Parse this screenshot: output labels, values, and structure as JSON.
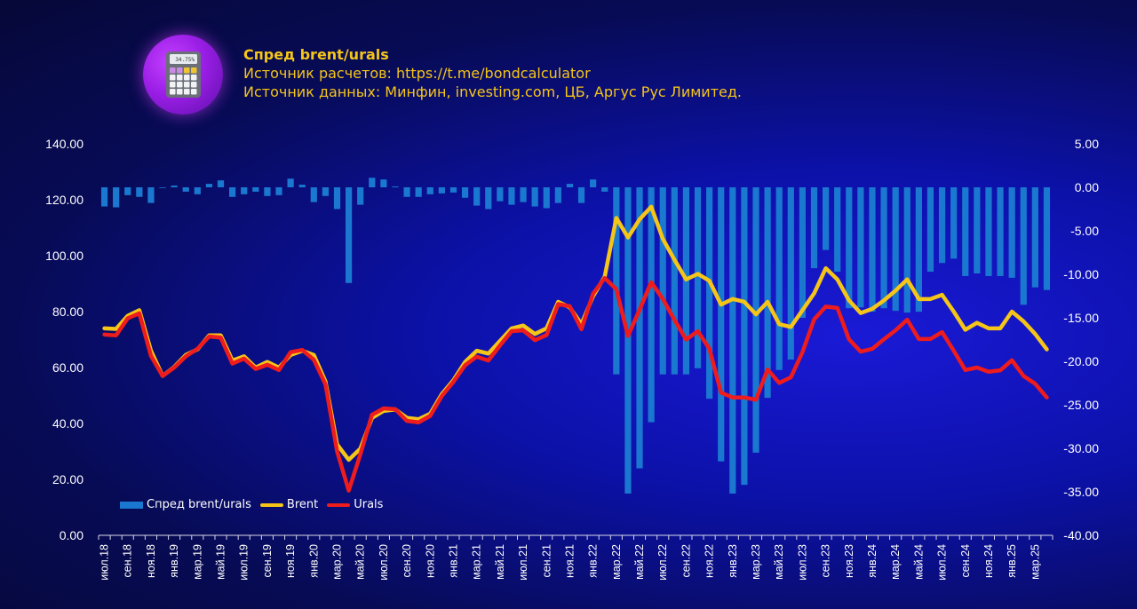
{
  "header": {
    "title": "Спред brent/urals",
    "source_calc": "Источник расчетов: https://t.me/bondcalculator",
    "source_data": "Источник данных: Минфин, investing.com, ЦБ, Аргус Рус Лимитед.",
    "logo_readout": "34.75%"
  },
  "chart_data": {
    "type": "bar+line",
    "title": "Спред brent/urals",
    "x_tick_labels": [
      "июл.18",
      "сен.18",
      "ноя.18",
      "янв.19",
      "мар.19",
      "май.19",
      "июл.19",
      "сен.19",
      "ноя.19",
      "янв.20",
      "мар.20",
      "май.20",
      "июл.20",
      "сен.20",
      "ноя.20",
      "янв.21",
      "мар.21",
      "май.21",
      "июл.21",
      "сен.21",
      "ноя.21",
      "янв.22",
      "мар.22",
      "май.22",
      "июл.22",
      "сен.22",
      "ноя.22",
      "янв.23",
      "мар.23",
      "май.23",
      "июл.23",
      "сен.23",
      "ноя.23",
      "янв.24",
      "мар.24",
      "май.24",
      "июл.24",
      "сен.24",
      "ноя.24",
      "янв.25",
      "мар.25"
    ],
    "left_axis": {
      "min": 0,
      "max": 140,
      "ticks": [
        "0.00",
        "20.00",
        "40.00",
        "60.00",
        "80.00",
        "100.00",
        "120.00",
        "140.00"
      ]
    },
    "right_axis": {
      "min": -40,
      "max": 5,
      "ticks": [
        "-40.00",
        "-35.00",
        "-30.00",
        "-25.00",
        "-20.00",
        "-15.00",
        "-10.00",
        "-5.00",
        "0.00",
        "5.00"
      ]
    },
    "series": [
      {
        "name": "Спред brent/urals",
        "type": "bar",
        "axis": "right",
        "color": "#1a78d0",
        "values": [
          -2.2,
          -2.3,
          -0.9,
          -1.1,
          -1.8,
          0.0,
          0.2,
          -0.5,
          -0.8,
          0.4,
          0.8,
          -1.1,
          -0.8,
          -0.5,
          -1.0,
          -0.9,
          1.0,
          0.3,
          -1.7,
          -1.0,
          -2.5,
          -11.0,
          -2.0,
          1.1,
          0.9,
          0.1,
          -1.1,
          -1.1,
          -0.8,
          -0.7,
          -0.6,
          -1.2,
          -2.1,
          -2.5,
          -1.6,
          -2.0,
          -1.7,
          -2.2,
          -2.4,
          -1.8,
          0.4,
          -1.8,
          0.9,
          -0.5,
          -21.5,
          -35.2,
          -32.3,
          -27.0,
          -21.5,
          -21.5,
          -21.5,
          -20.8,
          -24.3,
          -31.5,
          -35.2,
          -34.2,
          -30.5,
          -24.2,
          -21.0,
          -19.8,
          -15.0,
          -9.3,
          -7.2,
          -9.7,
          -13.9,
          -13.8,
          -14.3,
          -13.9,
          -14.2,
          -14.4,
          -14.3,
          -9.7,
          -8.7,
          -8.2,
          -10.2,
          -9.9,
          -10.2,
          -10.2,
          -10.4,
          -13.5,
          -11.5,
          -11.8
        ]
      },
      {
        "name": "Brent",
        "type": "line",
        "axis": "left",
        "color": "#f5c518",
        "values": [
          74.0,
          73.8,
          78.5,
          80.5,
          66.0,
          57.0,
          60.2,
          64.5,
          66.5,
          71.5,
          71.5,
          62.5,
          64.0,
          60.0,
          62.0,
          60.0,
          64.5,
          66.0,
          64.5,
          55.0,
          32.5,
          27.0,
          31.0,
          42.0,
          44.5,
          45.0,
          42.0,
          41.5,
          43.5,
          50.5,
          55.5,
          62.0,
          66.0,
          65.0,
          69.5,
          74.0,
          75.0,
          72.0,
          74.0,
          83.5,
          81.5,
          75.5,
          85.5,
          92.5,
          113.5,
          106.5,
          113.0,
          117.5,
          106.0,
          98.5,
          91.5,
          93.5,
          91.0,
          82.5,
          84.5,
          83.5,
          79.0,
          83.5,
          75.5,
          74.5,
          80.5,
          86.5,
          95.5,
          91.5,
          84.0,
          79.5,
          81.0,
          84.0,
          87.5,
          91.5,
          84.5,
          84.5,
          86.0,
          80.0,
          73.5,
          76.0,
          74.0,
          74.0,
          80.0,
          76.5,
          72.0,
          66.5
        ]
      },
      {
        "name": "Urals",
        "type": "line",
        "axis": "left",
        "color": "#ee1c1c",
        "values": [
          71.8,
          71.5,
          77.6,
          79.4,
          64.2,
          57.0,
          60.0,
          64.0,
          66.7,
          71.1,
          70.7,
          61.4,
          63.2,
          59.5,
          61.0,
          59.1,
          65.5,
          66.3,
          62.8,
          54.0,
          30.0,
          16.0,
          29.0,
          43.1,
          45.4,
          45.1,
          40.9,
          40.4,
          42.7,
          49.8,
          54.9,
          60.8,
          63.9,
          62.5,
          67.9,
          73.0,
          73.3,
          69.8,
          71.6,
          82.7,
          81.9,
          73.7,
          86.4,
          92.0,
          88.0,
          71.3,
          80.7,
          90.5,
          84.5,
          77.0,
          70.0,
          73.0,
          66.7,
          51.0,
          49.3,
          49.3,
          48.5,
          59.3,
          54.5,
          56.5,
          65.5,
          77.2,
          81.8,
          81.3,
          70.1,
          65.7,
          66.7,
          70.1,
          73.3,
          77.1,
          70.2,
          70.2,
          72.7,
          66.0,
          59.1,
          60.0,
          58.5,
          59.0,
          62.6,
          57.0,
          54.2,
          49.3
        ]
      }
    ],
    "legend": "bottom-left",
    "grid": false
  }
}
